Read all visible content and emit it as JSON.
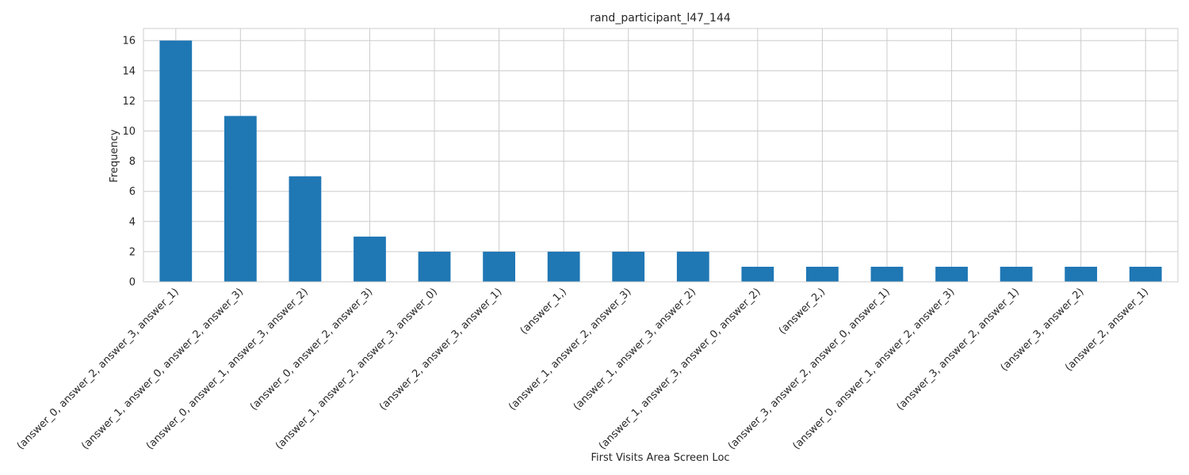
{
  "chart_data": {
    "type": "bar",
    "title": "rand_participant_l47_144",
    "xlabel": "First Visits Area Screen Loc",
    "ylabel": "Frequency",
    "categories": [
      "(answer_0, answer_2, answer_3, answer_1)",
      "(answer_1, answer_0, answer_2, answer_3)",
      "(answer_0, answer_1, answer_3, answer_2)",
      "(answer_0, answer_2, answer_3)",
      "(answer_1, answer_2, answer_3, answer_0)",
      "(answer_2, answer_3, answer_1)",
      "(answer_1,)",
      "(answer_1, answer_2, answer_3)",
      "(answer_1, answer_3, answer_2)",
      "(answer_1, answer_3, answer_0, answer_2)",
      "(answer_2,)",
      "(answer_3, answer_2, answer_0, answer_1)",
      "(answer_0, answer_1, answer_2, answer_3)",
      "(answer_3, answer_2, answer_1)",
      "(answer_3, answer_2)",
      "(answer_2, answer_1)"
    ],
    "values": [
      16,
      11,
      7,
      3,
      2,
      2,
      2,
      2,
      2,
      1,
      1,
      1,
      1,
      1,
      1,
      1
    ],
    "ylim": [
      0,
      16.8
    ],
    "yticks": [
      0,
      2,
      4,
      6,
      8,
      10,
      12,
      14,
      16
    ],
    "grid": true,
    "bar_color": "#1f77b4",
    "grid_color": "#cccccc"
  }
}
